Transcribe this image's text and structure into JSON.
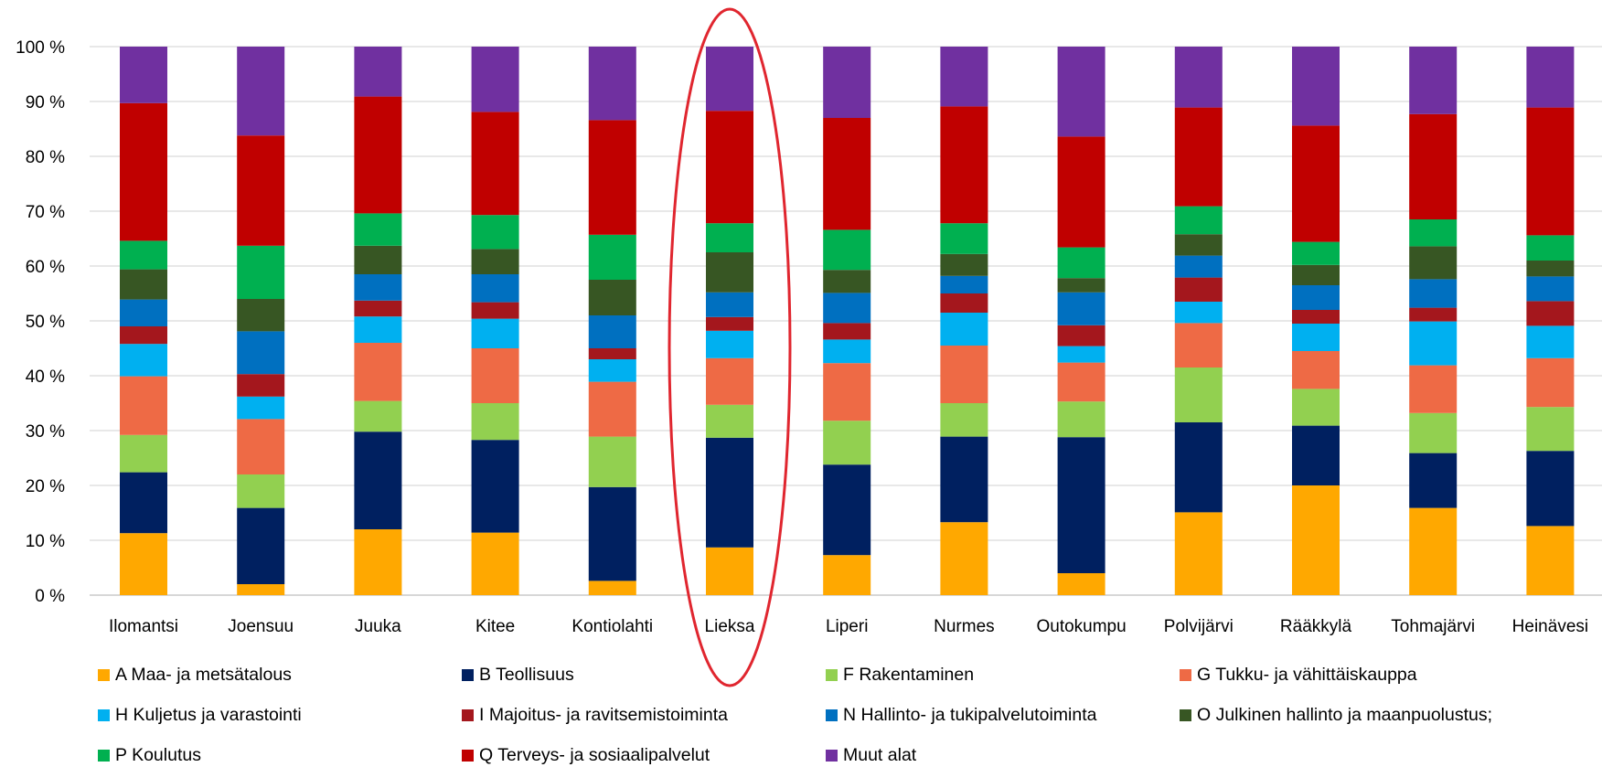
{
  "chart_data": {
    "type": "bar",
    "stacked": true,
    "percent": true,
    "title": "",
    "xlabel": "",
    "ylabel": "",
    "ylim": [
      0,
      100
    ],
    "yticks": [
      "0 %",
      "10 %",
      "20 %",
      "30 %",
      "40 %",
      "50 %",
      "60 %",
      "70 %",
      "80 %",
      "90 %",
      "100 %"
    ],
    "grid": true,
    "legend_position": "bottom",
    "highlight": {
      "category": "Lieksa",
      "shape": "ellipse",
      "color": "#E0262F"
    },
    "categories": [
      "Ilomantsi",
      "Joensuu",
      "Juuka",
      "Kitee",
      "Kontiolahti",
      "Lieksa",
      "Liperi",
      "Nurmes",
      "Outokumpu",
      "Polvijärvi",
      "Rääkkylä",
      "Tohmajärvi",
      "Heinävesi"
    ],
    "series": [
      {
        "name": "A Maa- ja metsätalous",
        "color": "#FFA800",
        "values": [
          11.3,
          2.0,
          12.0,
          11.4,
          2.6,
          8.7,
          7.3,
          13.3,
          4.0,
          15.1,
          20.0,
          15.9,
          12.6
        ]
      },
      {
        "name": "B Teollisuus",
        "color": "#002060",
        "values": [
          11.1,
          13.9,
          17.8,
          16.9,
          17.1,
          20.0,
          16.5,
          15.6,
          24.8,
          16.4,
          10.9,
          10.0,
          13.7
        ]
      },
      {
        "name": "F Rakentaminen",
        "color": "#92D050",
        "values": [
          6.8,
          6.1,
          5.6,
          6.7,
          9.2,
          6.0,
          8.0,
          6.1,
          6.5,
          10.0,
          6.7,
          7.3,
          8.0
        ]
      },
      {
        "name": "G Tukku- ja vähittäiskauppa",
        "color": "#EE6A45",
        "values": [
          10.7,
          10.1,
          10.6,
          10.0,
          10.0,
          8.5,
          10.5,
          10.5,
          7.1,
          8.1,
          6.9,
          8.7,
          8.9
        ]
      },
      {
        "name": "H Kuljetus ja varastointi",
        "color": "#00B0F0",
        "values": [
          5.9,
          4.1,
          4.8,
          5.4,
          4.1,
          5.0,
          4.3,
          6.0,
          3.0,
          3.9,
          5.0,
          8.0,
          5.9
        ]
      },
      {
        "name": "I Majoitus- ja ravitsemistoiminta",
        "color": "#A4171D",
        "values": [
          3.2,
          4.1,
          2.9,
          3.0,
          2.0,
          2.5,
          3.0,
          3.5,
          3.8,
          4.4,
          2.5,
          2.5,
          4.5
        ]
      },
      {
        "name": "N Hallinto- ja tukipalvelutoiminta",
        "color": "#0070C0",
        "values": [
          4.9,
          7.8,
          4.8,
          5.1,
          6.0,
          4.5,
          5.5,
          3.2,
          6.0,
          4.0,
          4.5,
          5.2,
          4.5
        ]
      },
      {
        "name": "O Julkinen hallinto ja maanpuolustus;",
        "color": "#375623",
        "values": [
          5.5,
          5.9,
          5.2,
          4.6,
          6.5,
          7.3,
          4.2,
          4.0,
          2.6,
          3.9,
          3.7,
          6.0,
          2.9
        ]
      },
      {
        "name": "P Koulutus",
        "color": "#00B050",
        "values": [
          5.2,
          9.7,
          5.9,
          6.2,
          8.2,
          5.3,
          7.3,
          5.6,
          5.6,
          5.1,
          4.2,
          4.9,
          4.6
        ]
      },
      {
        "name": "Q Terveys- ja sosiaalipalvelut",
        "color": "#C00000",
        "values": [
          25.1,
          20.1,
          21.3,
          18.8,
          20.9,
          20.5,
          20.4,
          21.3,
          20.2,
          18.0,
          21.2,
          19.2,
          23.3
        ]
      },
      {
        "name": "Muut alat",
        "color": "#7030A0",
        "values": [
          10.3,
          16.2,
          9.1,
          11.9,
          13.4,
          11.7,
          13.0,
          10.9,
          16.4,
          11.1,
          14.4,
          12.3,
          11.1
        ]
      }
    ]
  }
}
